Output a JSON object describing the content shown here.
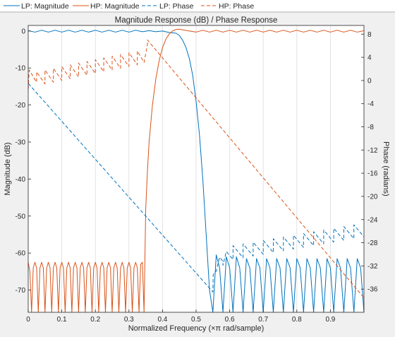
{
  "window": {
    "background": "#f0f0f0"
  },
  "legend": {
    "placement": "top",
    "entries": [
      {
        "label": "LP: Magnitude",
        "color": "#0072bd",
        "dash": "solid"
      },
      {
        "label": "HP: Magnitude",
        "color": "#d95319",
        "dash": "solid"
      },
      {
        "label": "LP: Phase",
        "color": "#0072bd",
        "dash": "dashed"
      },
      {
        "label": "HP: Phase",
        "color": "#d95319",
        "dash": "dashed"
      }
    ]
  },
  "chart_data": {
    "type": "line",
    "title": "Magnitude Response (dB) / Phase Response",
    "xlabel": "Normalized Frequency (×π rad/sample)",
    "ylabel": "Magnitude (dB)",
    "y2label": "Phase (radians)",
    "grid": "vertical",
    "xlim": [
      0,
      1
    ],
    "ylim": [
      -76,
      1.5
    ],
    "y2lim": [
      -40,
      9.5
    ],
    "xticks": [
      0,
      0.1,
      0.2,
      0.3,
      0.4,
      0.5,
      0.6,
      0.7,
      0.8,
      0.9
    ],
    "xticklabels": [
      "0",
      "0.1",
      "0.2",
      "0.3",
      "0.4",
      "0.5",
      "0.6",
      "0.7",
      "0.8",
      "0.9"
    ],
    "yticks": [
      0,
      -10,
      -20,
      -30,
      -40,
      -50,
      -60,
      -70
    ],
    "yticklabels": [
      "0",
      "-10",
      "-20",
      "-30",
      "-40",
      "-50",
      "-60",
      "-70"
    ],
    "y2ticks": [
      8,
      4,
      0,
      -4,
      -8,
      -12,
      -16,
      -20,
      -24,
      -28,
      -32,
      -36
    ],
    "y2ticklabels": [
      "8",
      "4",
      "0",
      "-4",
      "-8",
      "-12",
      "-16",
      "-20",
      "-24",
      "-28",
      "-32",
      "-36"
    ],
    "series": [
      {
        "name": "LP: Magnitude",
        "axis": "left",
        "color": "#0072bd",
        "dash": "solid",
        "x": [
          0,
          0.02,
          0.04,
          0.06,
          0.08,
          0.1,
          0.12,
          0.14,
          0.16,
          0.18,
          0.2,
          0.22,
          0.24,
          0.26,
          0.28,
          0.3,
          0.32,
          0.34,
          0.36,
          0.38,
          0.4,
          0.42,
          0.44,
          0.45,
          0.46,
          0.47,
          0.48,
          0.49,
          0.5,
          0.51,
          0.52,
          0.53,
          0.54,
          0.55,
          0.56,
          0.57,
          0.58,
          0.59,
          0.6,
          0.61,
          0.62,
          0.63,
          0.64,
          0.65,
          0.66,
          0.67,
          0.68,
          0.69,
          0.7,
          0.71,
          0.72,
          0.73,
          0.74,
          0.75,
          0.76,
          0.77,
          0.78,
          0.79,
          0.8,
          0.81,
          0.82,
          0.83,
          0.84,
          0.85,
          0.86,
          0.87,
          0.88,
          0.89,
          0.9,
          0.91,
          0.92,
          0.93,
          0.94,
          0.95,
          0.96,
          0.97,
          0.98,
          0.99,
          1.0
        ],
        "y": [
          0.1,
          -0.3,
          0.2,
          -0.3,
          0.2,
          -0.3,
          0.2,
          -0.3,
          0.2,
          -0.3,
          0.2,
          -0.3,
          0.2,
          -0.3,
          0.2,
          -0.3,
          0.2,
          -0.2,
          0.1,
          -0.2,
          0.0,
          -0.4,
          -0.6,
          -1.2,
          -2.5,
          -4.5,
          -7.5,
          -12,
          -19,
          -28,
          -40,
          -55,
          -70,
          -76,
          -60.5,
          -64,
          -76,
          -61,
          -64,
          -76,
          -61,
          -64,
          -76,
          -61.5,
          -64,
          -76,
          -61.5,
          -64,
          -76,
          -61.5,
          -64,
          -76,
          -61.5,
          -64,
          -76,
          -61.5,
          -64,
          -76,
          -61.5,
          -64,
          -76,
          -61.5,
          -64,
          -76,
          -61.5,
          -64,
          -76,
          -61.5,
          -64,
          -76,
          -61.5,
          -64,
          -76,
          -61.5,
          -64,
          -76,
          -61.5,
          -64,
          -76
        ]
      },
      {
        "name": "HP: Magnitude",
        "axis": "left",
        "color": "#d95319",
        "dash": "solid",
        "x": [
          0,
          0.005,
          0.01,
          0.015,
          0.02,
          0.025,
          0.03,
          0.035,
          0.04,
          0.045,
          0.05,
          0.055,
          0.06,
          0.065,
          0.07,
          0.075,
          0.08,
          0.085,
          0.09,
          0.095,
          0.1,
          0.105,
          0.11,
          0.115,
          0.12,
          0.125,
          0.13,
          0.135,
          0.14,
          0.145,
          0.15,
          0.155,
          0.16,
          0.165,
          0.17,
          0.175,
          0.18,
          0.185,
          0.19,
          0.195,
          0.2,
          0.205,
          0.21,
          0.215,
          0.22,
          0.225,
          0.23,
          0.235,
          0.24,
          0.245,
          0.25,
          0.255,
          0.26,
          0.265,
          0.27,
          0.275,
          0.28,
          0.285,
          0.29,
          0.295,
          0.3,
          0.305,
          0.31,
          0.315,
          0.32,
          0.325,
          0.33,
          0.335,
          0.34,
          0.345,
          0.35,
          0.355,
          0.36,
          0.37,
          0.38,
          0.39,
          0.4,
          0.41,
          0.42,
          0.43,
          0.44,
          0.45,
          0.46,
          0.48,
          0.5,
          0.52,
          0.54,
          0.56,
          0.58,
          0.6,
          0.62,
          0.64,
          0.66,
          0.68,
          0.7,
          0.72,
          0.74,
          0.76,
          0.78,
          0.8,
          0.82,
          0.84,
          0.86,
          0.88,
          0.9,
          0.92,
          0.94,
          0.96,
          0.98,
          1.0
        ],
        "y": [
          -62.5,
          -65,
          -76,
          -64,
          -62.5,
          -64,
          -76,
          -64,
          -62.5,
          -64,
          -76,
          -64,
          -62.5,
          -64,
          -76,
          -64,
          -62.5,
          -64,
          -76,
          -64,
          -62.5,
          -64,
          -76,
          -64,
          -62.5,
          -64,
          -76,
          -64,
          -62.5,
          -64,
          -76,
          -64,
          -62.5,
          -64,
          -76,
          -64,
          -62.5,
          -64,
          -76,
          -64,
          -62.5,
          -64,
          -76,
          -64,
          -62.5,
          -64,
          -76,
          -64,
          -62.5,
          -64,
          -76,
          -64,
          -62.5,
          -64,
          -76,
          -64,
          -62.5,
          -64,
          -76,
          -64,
          -62.5,
          -64,
          -76,
          -64,
          -62.5,
          -64,
          -76,
          -63,
          -62.5,
          -76,
          -48,
          -38,
          -30,
          -20,
          -13,
          -8,
          -4.5,
          -2.2,
          -0.8,
          0.0,
          0.4,
          0.5,
          0.3,
          0.0,
          -0.3,
          0.2,
          -0.3,
          0.2,
          -0.3,
          0.2,
          -0.3,
          0.2,
          -0.3,
          0.2,
          -0.3,
          0.2,
          -0.3,
          0.2,
          -0.3,
          0.2,
          -0.3,
          0.2,
          -0.3,
          0.2,
          -0.3,
          0.2,
          -0.3,
          0.2,
          -0.3,
          0.1
        ]
      },
      {
        "name": "LP: Phase",
        "axis": "right",
        "color": "#0072bd",
        "dash": "dashed",
        "x": [
          0,
          0.55,
          0.551,
          0.56,
          0.57,
          0.58,
          0.58,
          0.59,
          0.6,
          0.61,
          0.61,
          0.62,
          0.63,
          0.64,
          0.64,
          0.65,
          0.66,
          0.67,
          0.67,
          0.68,
          0.69,
          0.7,
          0.7,
          0.71,
          0.72,
          0.73,
          0.73,
          0.74,
          0.75,
          0.76,
          0.76,
          0.77,
          0.78,
          0.79,
          0.79,
          0.8,
          0.81,
          0.82,
          0.82,
          0.83,
          0.84,
          0.85,
          0.85,
          0.86,
          0.87,
          0.88,
          0.88,
          0.89,
          0.9,
          0.91,
          0.91,
          0.92,
          0.93,
          0.94,
          0.94,
          0.95,
          0.96,
          0.97,
          0.97,
          0.98,
          0.99,
          1.0
        ],
        "y": [
          -0.5,
          -36.5,
          -33.5,
          -32.9,
          -30.5,
          -31.2,
          -31.9,
          -29.5,
          -30.2,
          -30.9,
          -28.5,
          -29.2,
          -29.9,
          -30.6,
          -28.2,
          -28.9,
          -29.6,
          -30.3,
          -27.9,
          -28.6,
          -29.3,
          -30.0,
          -27.6,
          -28.3,
          -29.0,
          -29.7,
          -27.3,
          -28.0,
          -28.7,
          -29.4,
          -27.0,
          -27.7,
          -28.4,
          -29.1,
          -26.7,
          -27.4,
          -28.1,
          -28.8,
          -26.4,
          -27.1,
          -27.8,
          -28.5,
          -26.1,
          -26.8,
          -27.5,
          -28.2,
          -25.8,
          -26.5,
          -27.2,
          -27.9,
          -25.5,
          -26.2,
          -26.9,
          -27.6,
          -25.2,
          -25.9,
          -26.6,
          -27.3,
          -24.9,
          -25.6,
          -26.3,
          -27.0
        ]
      },
      {
        "name": "HP: Phase",
        "axis": "right",
        "color": "#d95319",
        "dash": "dashed",
        "x": [
          0,
          0.003,
          0.025,
          0.025,
          0.05,
          0.05,
          0.075,
          0.075,
          0.1,
          0.1,
          0.125,
          0.125,
          0.15,
          0.15,
          0.175,
          0.175,
          0.2,
          0.2,
          0.225,
          0.225,
          0.25,
          0.25,
          0.275,
          0.275,
          0.3,
          0.3,
          0.325,
          0.325,
          0.345,
          0.355,
          0.355,
          1.0
        ],
        "y": [
          -1.5,
          1.8,
          -0.3,
          1.5,
          -0.6,
          1.8,
          -0.3,
          2.1,
          0.0,
          2.4,
          0.3,
          2.7,
          0.6,
          3.0,
          0.9,
          3.3,
          1.2,
          3.6,
          1.5,
          3.9,
          1.8,
          4.2,
          2.1,
          4.5,
          2.4,
          4.8,
          2.7,
          5.1,
          3.1,
          6.2,
          7.0,
          -37.5
        ]
      }
    ]
  }
}
